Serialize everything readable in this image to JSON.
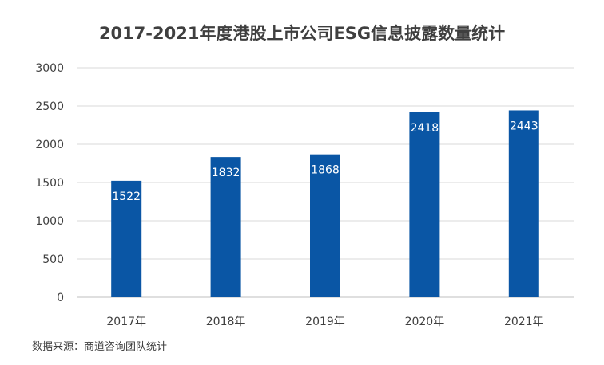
{
  "chart_data": {
    "type": "bar",
    "title": "2017-2021年度港股上市公司ESG信息披露数量统计",
    "categories": [
      "2017年",
      "2018年",
      "2019年",
      "2020年",
      "2021年"
    ],
    "values": [
      1522,
      1832,
      1868,
      2418,
      2443
    ],
    "ylim": [
      0,
      3000
    ],
    "yticks": [
      0,
      500,
      1000,
      1500,
      2000,
      2500,
      3000
    ],
    "xlabel": "",
    "ylabel": "",
    "grid": true,
    "legend": "none",
    "data_labels": "inside-top",
    "bar_color": "#0a56a5",
    "label_color": "#ffffff"
  },
  "source": "数据来源：商道咨询团队统计"
}
